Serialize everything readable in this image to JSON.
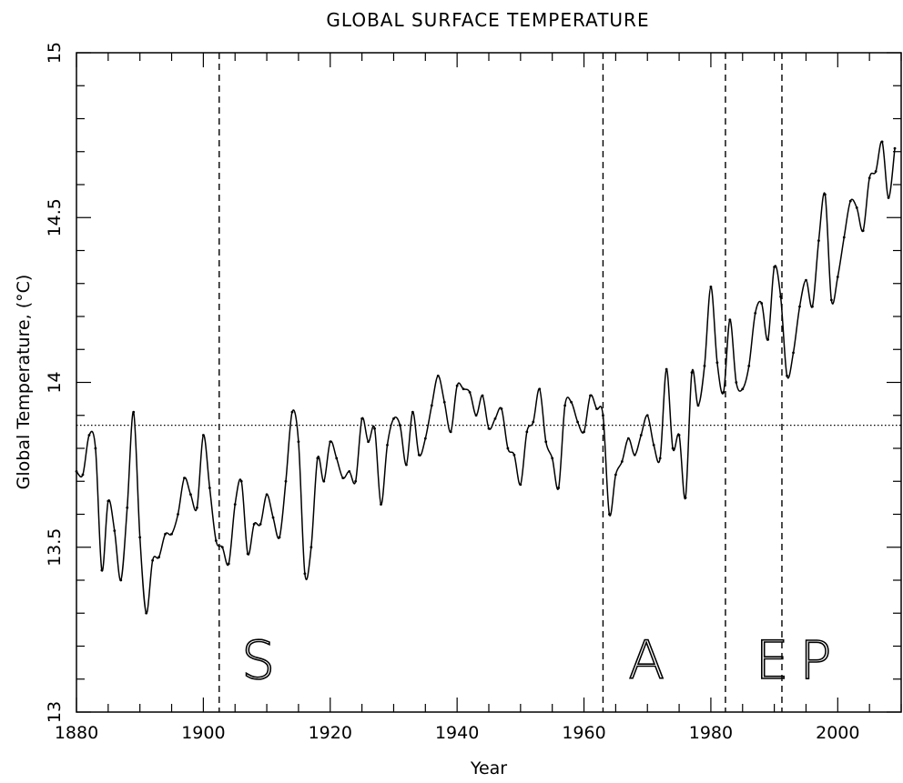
{
  "chart_data": {
    "type": "line",
    "title": "GLOBAL SURFACE TEMPERATURE",
    "xlabel": "Year",
    "ylabel": "Global Temperature, (°C)",
    "xlim": [
      1880,
      2010
    ],
    "ylim": [
      13,
      15
    ],
    "x_ticks": [
      1880,
      1900,
      1920,
      1940,
      1960,
      1980,
      2000
    ],
    "y_ticks": [
      "13",
      "13.5",
      "14",
      "14.5",
      "15"
    ],
    "grid": false,
    "reference_line": {
      "y": 13.87,
      "style": "dotted"
    },
    "events": [
      {
        "x": 1902.5,
        "label": "S",
        "label_x": 1906
      },
      {
        "x": 1963,
        "label": "A",
        "label_x": 1967
      },
      {
        "x": 1982.3,
        "label": "E",
        "label_x": 1987
      },
      {
        "x": 1991.2,
        "label": "P",
        "label_x": 1994
      }
    ],
    "series": [
      {
        "x": [
          1880,
          1881,
          1882,
          1883,
          1884,
          1885,
          1886,
          1887,
          1888,
          1889,
          1890,
          1891,
          1892,
          1893,
          1894,
          1895,
          1896,
          1897,
          1898,
          1899,
          1900,
          1901,
          1902,
          1903,
          1904,
          1905,
          1906,
          1907,
          1908,
          1909,
          1910,
          1911,
          1912,
          1913,
          1914,
          1915,
          1916,
          1917,
          1918,
          1919,
          1920,
          1921,
          1922,
          1923,
          1924,
          1925,
          1926,
          1927,
          1928,
          1929,
          1930,
          1931,
          1932,
          1933,
          1934,
          1935,
          1936,
          1937,
          1938,
          1939,
          1940,
          1941,
          1942,
          1943,
          1944,
          1945,
          1946,
          1947,
          1948,
          1949,
          1950,
          1951,
          1952,
          1953,
          1954,
          1955,
          1956,
          1957,
          1958,
          1959,
          1960,
          1961,
          1962,
          1963,
          1964,
          1965,
          1966,
          1967,
          1968,
          1969,
          1970,
          1971,
          1972,
          1973,
          1974,
          1975,
          1976,
          1977,
          1978,
          1979,
          1980,
          1981,
          1982,
          1983,
          1984,
          1985,
          1986,
          1987,
          1988,
          1989,
          1990,
          1991,
          1992,
          1993,
          1994,
          1995,
          1996,
          1997,
          1998,
          1999,
          2000,
          2001,
          2002,
          2003,
          2004,
          2005,
          2006,
          2007,
          2008,
          2009
        ],
        "values": [
          13.73,
          13.72,
          13.84,
          13.8,
          13.43,
          13.64,
          13.55,
          13.4,
          13.62,
          13.91,
          13.53,
          13.3,
          13.46,
          13.47,
          13.54,
          13.54,
          13.6,
          13.71,
          13.66,
          13.62,
          13.84,
          13.68,
          13.52,
          13.5,
          13.45,
          13.63,
          13.7,
          13.48,
          13.57,
          13.57,
          13.66,
          13.59,
          13.53,
          13.7,
          13.91,
          13.82,
          13.42,
          13.5,
          13.77,
          13.7,
          13.82,
          13.77,
          13.71,
          13.73,
          13.7,
          13.89,
          13.82,
          13.86,
          13.63,
          13.81,
          13.89,
          13.87,
          13.75,
          13.91,
          13.78,
          13.83,
          13.93,
          14.02,
          13.94,
          13.85,
          13.99,
          13.98,
          13.97,
          13.9,
          13.96,
          13.86,
          13.89,
          13.92,
          13.8,
          13.78,
          13.69,
          13.85,
          13.88,
          13.98,
          13.82,
          13.77,
          13.68,
          13.93,
          13.94,
          13.88,
          13.85,
          13.96,
          13.92,
          13.9,
          13.6,
          13.72,
          13.76,
          13.83,
          13.78,
          13.84,
          13.9,
          13.81,
          13.77,
          14.04,
          13.8,
          13.84,
          13.65,
          14.03,
          13.93,
          14.05,
          14.29,
          14.06,
          13.97,
          14.19,
          14.0,
          13.98,
          14.05,
          14.21,
          14.24,
          14.13,
          14.35,
          14.26,
          14.02,
          14.09,
          14.23,
          14.31,
          14.23,
          14.43,
          14.57,
          14.25,
          14.32,
          14.44,
          14.55,
          14.53,
          14.46,
          14.62,
          14.64,
          14.73,
          14.56,
          14.71
        ]
      }
    ]
  }
}
